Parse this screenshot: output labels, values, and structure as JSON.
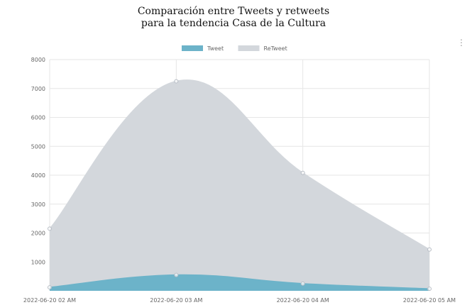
{
  "chart_data": {
    "type": "area",
    "title": [
      "Comparación entre Tweets y retweets",
      "para la tendencia Casa de la Cultura"
    ],
    "categories": [
      "2022-06-20 02 AM",
      "2022-06-20 03 AM",
      "2022-06-20 04 AM",
      "2022-06-20 05 AM"
    ],
    "series": [
      {
        "name": "Tweet",
        "values": [
          120,
          550,
          250,
          70
        ],
        "color": "#6cb3c9"
      },
      {
        "name": "ReTweet",
        "values": [
          2150,
          7250,
          4080,
          1430
        ],
        "color": "#d3d7dc"
      }
    ],
    "yticks": [
      1000,
      2000,
      3000,
      4000,
      5000,
      6000,
      7000,
      8000
    ],
    "ylim": [
      0,
      8000
    ],
    "grid": true,
    "legend": "top-center"
  },
  "ui": {
    "menu_icon": "vertical-ellipsis-icon"
  }
}
